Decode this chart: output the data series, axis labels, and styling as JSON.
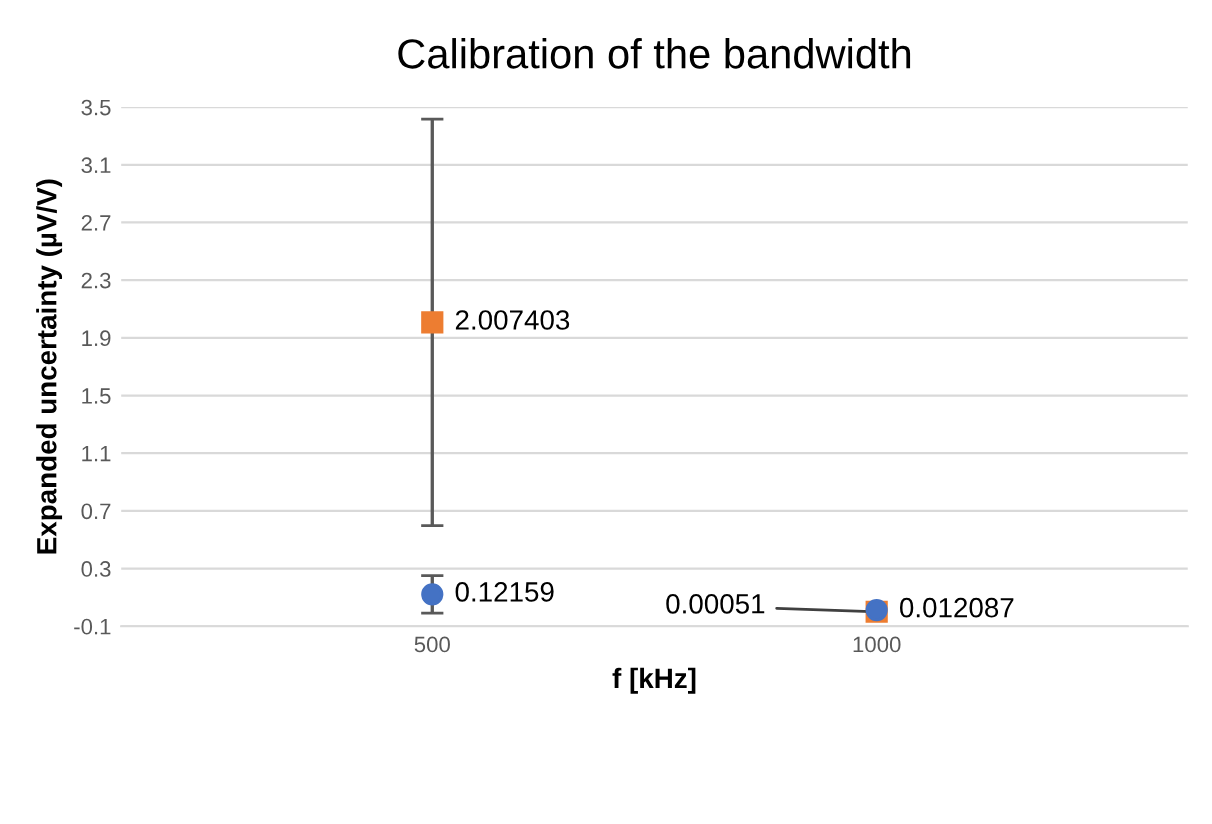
{
  "chart_data": {
    "type": "scatter",
    "title": "Calibration of the bandwidth",
    "xlabel": "f [kHz]",
    "ylabel": "Expanded uncertainty (µV/V)",
    "categories": [
      "500",
      "1000"
    ],
    "series": [
      {
        "color": "#ed7d31",
        "marker": "square",
        "values": [
          2.007403,
          0.00051
        ],
        "errors": [
          1.41,
          null
        ],
        "value_labels": [
          "2.007403",
          "0.00051"
        ]
      },
      {
        "color": "#4472c4",
        "marker": "circle",
        "values": [
          0.12159,
          0.012087
        ],
        "errors": [
          0.13,
          null
        ],
        "value_labels": [
          "0.12159",
          "0.012087"
        ]
      }
    ],
    "ylim": [
      -0.1,
      3.5
    ],
    "yticks": [
      -0.1,
      0.3,
      0.7,
      1.1,
      1.5,
      1.9,
      2.3,
      2.7,
      3.1,
      3.5
    ],
    "grid": "y"
  }
}
